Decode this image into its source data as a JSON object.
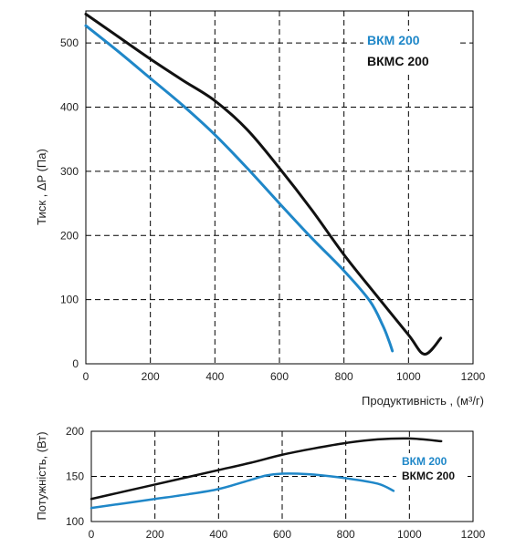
{
  "chart_data": [
    {
      "type": "line",
      "xlabel": "Продуктивність , (м³/г)",
      "ylabel": "Тиск , ΔP (Па)",
      "xlim": [
        0,
        1200
      ],
      "ylim": [
        0,
        550
      ],
      "xticks": [
        0,
        200,
        400,
        600,
        800,
        1000,
        1200
      ],
      "yticks": [
        0,
        100,
        200,
        300,
        400,
        500
      ],
      "grid": true,
      "legend_position": "top-right",
      "series": [
        {
          "name": "ВКМ 200",
          "color": "#1f87c8",
          "x": [
            0,
            100,
            200,
            300,
            400,
            500,
            600,
            700,
            800,
            880,
            920,
            940,
            950
          ],
          "y": [
            527,
            487,
            445,
            403,
            357,
            305,
            250,
            196,
            145,
            98,
            60,
            35,
            20
          ]
        },
        {
          "name": "ВКМС 200",
          "color": "#111111",
          "x": [
            0,
            100,
            200,
            300,
            400,
            500,
            600,
            700,
            800,
            900,
            1000,
            1050,
            1100
          ],
          "y": [
            545,
            510,
            475,
            442,
            410,
            365,
            305,
            240,
            170,
            107,
            45,
            15,
            40
          ]
        }
      ]
    },
    {
      "type": "line",
      "xlabel": "",
      "ylabel": "Потужність, (Вт)",
      "xlim": [
        0,
        1200
      ],
      "ylim": [
        100,
        200
      ],
      "xticks": [
        0,
        200,
        400,
        600,
        800,
        1000,
        1200
      ],
      "yticks": [
        100,
        150,
        200
      ],
      "grid": true,
      "legend_position": "right",
      "series": [
        {
          "name": "ВКМ 200",
          "color": "#1f87c8",
          "x": [
            0,
            100,
            200,
            300,
            400,
            500,
            550,
            600,
            650,
            700,
            800,
            900,
            950
          ],
          "y": [
            115,
            120,
            125,
            130,
            136,
            146,
            151,
            153,
            153,
            152,
            148,
            142,
            134
          ]
        },
        {
          "name": "ВКМС 200",
          "color": "#111111",
          "x": [
            0,
            100,
            200,
            300,
            400,
            500,
            600,
            700,
            800,
            900,
            1000,
            1100
          ],
          "y": [
            125,
            133,
            141,
            149,
            157,
            165,
            174,
            181,
            187,
            191,
            192,
            189
          ]
        }
      ]
    }
  ]
}
